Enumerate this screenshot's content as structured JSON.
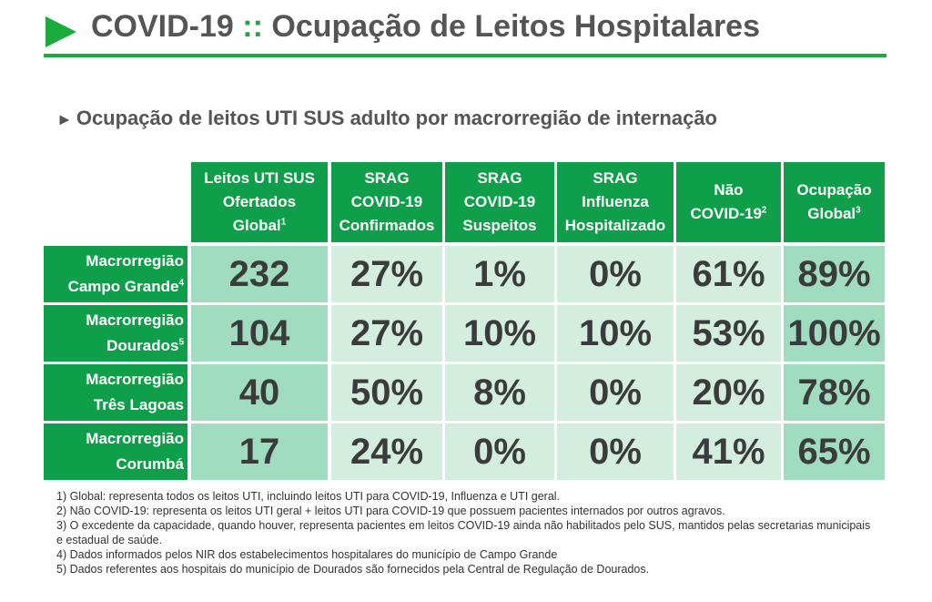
{
  "title": {
    "main": "COVID-19",
    "separator": "::",
    "rest": "Ocupação de Leitos Hospitalares"
  },
  "subtitle": "Ocupação de leitos UTI SUS adulto por macrorregião de internação",
  "columns": [
    {
      "lines": [
        "Leitos UTI SUS",
        "Ofertados",
        "Global"
      ],
      "sup": "1"
    },
    {
      "lines": [
        "SRAG",
        "COVID-19",
        "Confirmados"
      ],
      "sup": ""
    },
    {
      "lines": [
        "SRAG",
        "COVID-19",
        "Suspeitos"
      ],
      "sup": ""
    },
    {
      "lines": [
        "SRAG",
        "Influenza",
        "Hospitalizado"
      ],
      "sup": ""
    },
    {
      "lines": [
        "Não",
        "COVID-19"
      ],
      "sup": "2"
    },
    {
      "lines": [
        "Ocupação",
        "Global"
      ],
      "sup": "3"
    }
  ],
  "rows": [
    {
      "label1": "Macrorregião",
      "label2": "Campo Grande",
      "sup": "4",
      "values": [
        "232",
        "27%",
        "1%",
        "0%",
        "61%",
        "89%"
      ]
    },
    {
      "label1": "Macrorregião",
      "label2": "Dourados",
      "sup": "5",
      "values": [
        "104",
        "27%",
        "10%",
        "10%",
        "53%",
        "100%"
      ]
    },
    {
      "label1": "Macrorregião",
      "label2": "Três Lagoas",
      "sup": "",
      "values": [
        "40",
        "50%",
        "8%",
        "0%",
        "20%",
        "78%"
      ]
    },
    {
      "label1": "Macrorregião",
      "label2": "Corumbá",
      "sup": "",
      "values": [
        "17",
        "24%",
        "0%",
        "0%",
        "41%",
        "65%"
      ]
    }
  ],
  "footnotes": [
    "1) Global: representa todos os leitos UTI, incluindo leitos UTI para COVID-19, Influenza e UTI geral.",
    "2) Não COVID-19: representa os leitos UTI geral + leitos UTI para COVID-19 que possuem pacientes internados por outros agravos.",
    "3) O excedente da capacidade, quando houver, representa pacientes em leitos COVID-19 ainda não habilitados pelo SUS, mantidos pelas secretarias municipais e estadual de saúde.",
    "4) Dados informados pelos NIR dos estabelecimentos hospitalares do município de Campo Grande",
    "5) Dados referentes aos hospitais do município de Dourados são fornecidos pela Central de Regulação de Dourados."
  ],
  "colors": {
    "accent": "#1aab3a",
    "header_bg": "#0f9e4a",
    "cell_light": "#d3eddf",
    "cell_dark": "#9fdcc0"
  }
}
